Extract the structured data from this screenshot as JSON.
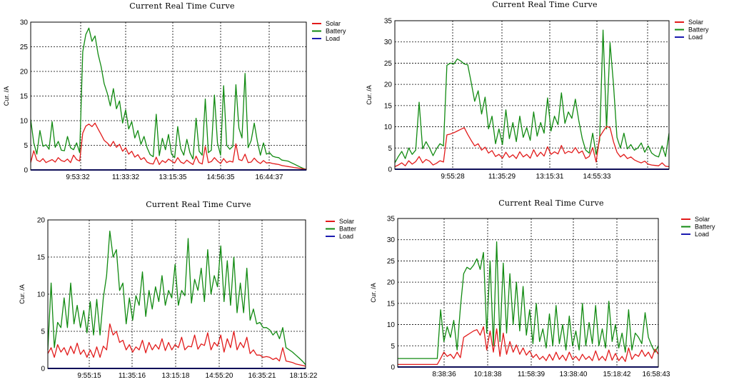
{
  "chart_data": [
    {
      "type": "line",
      "title": "Current Real Time Curve",
      "ylabel": "Cur. /A",
      "xlabel": "",
      "ylim": [
        0,
        30
      ],
      "yticks": [
        0,
        5,
        10,
        15,
        20,
        25,
        30
      ],
      "xticks": [
        "9:53:32",
        "11:33:32",
        "13:15:35",
        "14:56:35",
        "16:44:37"
      ],
      "legend": "top-right",
      "grid": true,
      "series": [
        {
          "name": "Solar",
          "color": "#e21b1b",
          "values": [
            1.5,
            3.9,
            2.0,
            1.7,
            2.3,
            1.5,
            1.8,
            2.1,
            1.6,
            2.5,
            1.9,
            1.7,
            2.2,
            1.5,
            3.0,
            2.1,
            1.8,
            7.5,
            8.9,
            9.3,
            8.8,
            9.5,
            8.3,
            7.2,
            6.0,
            5.5,
            4.8,
            5.8,
            4.6,
            5.2,
            3.8,
            4.5,
            3.2,
            3.8,
            2.6,
            3.1,
            2.1,
            2.5,
            1.6,
            1.3,
            1.2,
            2.6,
            1.1,
            1.9,
            1.5,
            2.2,
            1.8,
            1.4,
            2.5,
            1.6,
            1.3,
            2.0,
            1.5,
            1.1,
            2.8,
            1.5,
            1.2,
            4.8,
            1.5,
            1.7,
            2.5,
            1.8,
            1.3,
            2.3,
            1.5,
            1.8,
            1.6,
            5.3,
            2.1,
            1.9,
            3.2,
            1.5,
            1.6,
            2.4,
            1.7,
            1.3,
            1.9,
            1.4,
            1.5,
            1.3,
            1.2,
            1.1,
            0.9,
            0.8,
            0.7,
            0.6,
            0.5,
            0.4,
            0.3,
            0.2,
            0.1
          ]
        },
        {
          "name": "Battery",
          "color": "#118a11",
          "values": [
            10.2,
            5.5,
            3.2,
            8.0,
            4.8,
            5.1,
            4.2,
            9.8,
            4.6,
            5.8,
            4.0,
            3.9,
            6.8,
            4.5,
            4.1,
            5.5,
            3.5,
            24.0,
            27.5,
            28.8,
            26.1,
            27.2,
            23.5,
            21.0,
            17.5,
            15.6,
            13.0,
            16.5,
            12.4,
            14.0,
            9.5,
            12.2,
            8.3,
            9.8,
            6.5,
            8.0,
            5.2,
            6.8,
            4.5,
            3.1,
            2.7,
            11.3,
            2.9,
            6.4,
            4.1,
            7.2,
            3.2,
            2.5,
            8.8,
            4.3,
            3.0,
            6.2,
            3.5,
            2.2,
            10.5,
            3.8,
            3.0,
            14.4,
            3.5,
            4.0,
            15.2,
            5.5,
            3.0,
            17.1,
            5.0,
            4.2,
            4.8,
            17.3,
            8.5,
            6.5,
            19.6,
            4.5,
            6.0,
            9.5,
            5.8,
            3.0,
            5.5,
            3.2,
            3.5,
            2.8,
            2.6,
            2.5,
            2.0,
            1.9,
            1.8,
            1.5,
            1.2,
            0.9,
            0.6,
            0.3,
            0.1
          ]
        },
        {
          "name": "Load",
          "color": "#1b1bb0",
          "values": [
            0,
            0,
            0,
            0,
            0,
            0,
            0,
            0,
            0,
            0,
            0,
            0,
            0,
            0,
            0,
            0,
            0,
            0,
            0,
            0,
            0,
            0,
            0,
            0,
            0,
            0,
            0,
            0,
            0,
            0,
            0,
            0,
            0,
            0,
            0,
            0,
            0,
            0,
            0,
            0,
            0,
            0,
            0,
            0,
            0,
            0,
            0,
            0,
            0,
            0,
            0,
            0,
            0,
            0,
            0,
            0,
            0,
            0,
            0,
            0,
            0,
            0,
            0,
            0,
            0,
            0,
            0,
            0,
            0,
            0,
            0,
            0,
            0,
            0,
            0,
            0,
            0,
            0,
            0,
            0,
            0,
            0,
            0,
            0,
            0,
            0,
            0,
            0,
            0,
            0,
            0
          ]
        }
      ]
    },
    {
      "type": "line",
      "title": "Current Real Time Curve",
      "ylabel": "Cur. /A",
      "xlabel": "",
      "ylim": [
        0,
        35
      ],
      "yticks": [
        0,
        5,
        10,
        15,
        20,
        25,
        30,
        35
      ],
      "xticks": [
        "9:55:28",
        "11:35:29",
        "13:15:31",
        "14:55:33"
      ],
      "legend": "top-right",
      "grid": true,
      "series": [
        {
          "name": "Solar",
          "color": "#e21b1b",
          "values": [
            0.6,
            1.0,
            1.5,
            0.8,
            2.0,
            1.2,
            1.8,
            3.0,
            1.5,
            2.3,
            1.9,
            1.0,
            1.4,
            2.0,
            1.7,
            8.1,
            8.3,
            8.6,
            9.0,
            9.4,
            9.8,
            8.2,
            6.8,
            5.5,
            6.0,
            4.5,
            5.2,
            3.8,
            4.4,
            3.0,
            3.5,
            2.6,
            4.0,
            2.8,
            3.4,
            2.5,
            4.1,
            2.9,
            3.5,
            2.6,
            4.6,
            3.0,
            4.0,
            3.1,
            5.3,
            3.5,
            4.1,
            3.6,
            5.6,
            3.7,
            4.2,
            3.9,
            5.1,
            3.8,
            4.3,
            2.5,
            3.0,
            5.1,
            1.7,
            7.6,
            8.9,
            10.1,
            9.8,
            6.5,
            4.0,
            2.9,
            3.5,
            2.5,
            2.9,
            2.2,
            1.8,
            1.5,
            1.9,
            1.2,
            1.0,
            0.9,
            0.8,
            1.5,
            0.7,
            0.6
          ]
        },
        {
          "name": "Battery",
          "color": "#118a11",
          "values": [
            1.5,
            3.0,
            4.2,
            2.5,
            5.0,
            3.5,
            4.5,
            15.8,
            4.8,
            6.5,
            5.0,
            3.2,
            4.8,
            6.0,
            5.5,
            24.5,
            25.0,
            24.8,
            26.0,
            25.5,
            24.8,
            24.6,
            20.5,
            16.0,
            18.5,
            13.0,
            17.0,
            9.5,
            12.5,
            6.0,
            9.5,
            5.8,
            14.0,
            7.2,
            11.0,
            6.5,
            12.5,
            7.5,
            9.8,
            6.8,
            13.5,
            7.8,
            11.0,
            8.5,
            16.8,
            9.0,
            12.5,
            10.5,
            18.0,
            10.8,
            13.5,
            12.0,
            16.5,
            11.5,
            7.2,
            4.5,
            3.8,
            8.5,
            3.5,
            6.8,
            32.8,
            9.5,
            29.8,
            20.0,
            7.5,
            5.0,
            8.5,
            4.8,
            5.8,
            4.5,
            5.0,
            6.2,
            4.0,
            5.5,
            3.8,
            3.2,
            2.9,
            5.5,
            3.0,
            8.5
          ]
        },
        {
          "name": "Load",
          "color": "#1b1bb0",
          "values": [
            0,
            0,
            0,
            0,
            0,
            0,
            0,
            0,
            0,
            0,
            0,
            0,
            0,
            0,
            0,
            0,
            0,
            0,
            0,
            0,
            0,
            0,
            0,
            0,
            0,
            0,
            0,
            0,
            0,
            0,
            0,
            0,
            0,
            0,
            0,
            0,
            0,
            0,
            0,
            0,
            0,
            0,
            0,
            0,
            0,
            0,
            0,
            0,
            0,
            0,
            0,
            0,
            0,
            0,
            0,
            0,
            0,
            0,
            0,
            0,
            0,
            0,
            0,
            0,
            0,
            0,
            0,
            0,
            0,
            0,
            0,
            0,
            0,
            0,
            0,
            0,
            0,
            0,
            0,
            0
          ]
        }
      ]
    },
    {
      "type": "line",
      "title": "Current Real Time Curve",
      "ylabel": "Cur. /A",
      "xlabel": "",
      "ylim": [
        0,
        20
      ],
      "yticks": [
        0,
        5,
        10,
        15,
        20
      ],
      "xticks": [
        "9:55:15",
        "11:35:16",
        "13:15:18",
        "14:55:20",
        "16:35:21",
        "18:15:22"
      ],
      "legend": "top-right",
      "legend_labels": [
        "Solar",
        "Batter",
        "Load"
      ],
      "grid": true,
      "series": [
        {
          "name": "Solar",
          "color": "#e21b1b",
          "values": [
            2.0,
            2.8,
            1.5,
            3.2,
            2.2,
            2.8,
            1.8,
            3.0,
            2.0,
            3.4,
            1.9,
            2.5,
            1.5,
            2.5,
            1.5,
            2.9,
            1.5,
            3.0,
            2.5,
            6.0,
            4.5,
            5.0,
            3.5,
            3.8,
            2.5,
            3.2,
            2.2,
            2.9,
            2.5,
            3.8,
            2.1,
            3.5,
            2.5,
            3.2,
            2.6,
            4.0,
            2.4,
            3.5,
            2.5,
            3.2,
            2.8,
            4.2,
            2.5,
            3.0,
            2.9,
            4.5,
            2.6,
            3.3,
            3.1,
            4.8,
            2.5,
            3.5,
            3.0,
            4.5,
            2.2,
            4.0,
            2.8,
            5.0,
            2.5,
            3.5,
            2.8,
            4.2,
            2.0,
            2.5,
            1.8,
            1.8,
            1.5,
            1.6,
            1.5,
            1.2,
            1.4,
            1.0,
            2.8,
            1.0,
            0.9,
            0.8,
            0.6,
            0.5,
            0.4,
            0.3
          ]
        },
        {
          "name": "Battery",
          "color": "#118a11",
          "values": [
            2.5,
            11.5,
            2.8,
            6.2,
            5.5,
            9.5,
            5.5,
            11.5,
            6.0,
            8.5,
            5.5,
            7.8,
            4.8,
            9.0,
            4.5,
            9.3,
            4.5,
            9.5,
            12.5,
            18.5,
            15.0,
            16.0,
            10.5,
            11.5,
            6.0,
            9.5,
            6.5,
            9.8,
            8.5,
            13.0,
            7.0,
            10.5,
            8.0,
            11.0,
            9.0,
            12.5,
            8.5,
            10.5,
            9.5,
            14.0,
            8.5,
            10.5,
            9.8,
            17.5,
            8.8,
            12.0,
            10.5,
            13.5,
            9.0,
            16.0,
            10.0,
            12.5,
            11.0,
            16.5,
            9.0,
            14.5,
            8.5,
            15.0,
            7.5,
            11.5,
            7.5,
            13.5,
            6.5,
            8.0,
            6.0,
            6.2,
            5.5,
            5.5,
            5.2,
            4.5,
            5.0,
            4.0,
            5.5,
            2.8,
            2.5,
            2.2,
            1.8,
            1.4,
            1.0,
            0.5
          ]
        },
        {
          "name": "Load",
          "color": "#1b1bb0",
          "values": [
            0,
            0,
            0,
            0,
            0,
            0,
            0,
            0,
            0,
            0,
            0,
            0,
            0,
            0,
            0,
            0,
            0,
            0,
            0,
            0,
            0,
            0,
            0,
            0,
            0,
            0,
            0,
            0,
            0,
            0,
            0,
            0,
            0,
            0,
            0,
            0,
            0,
            0,
            0,
            0,
            0,
            0,
            0,
            0,
            0,
            0,
            0,
            0,
            0,
            0,
            0,
            0,
            0,
            0,
            0,
            0,
            0,
            0,
            0,
            0,
            0,
            0,
            0,
            0,
            0,
            0,
            0,
            0,
            0,
            0,
            0,
            0,
            0,
            0,
            0,
            0,
            0,
            0,
            0,
            0
          ]
        }
      ]
    },
    {
      "type": "line",
      "title": "Current Real Time Curve",
      "ylabel": "Cur. /A",
      "xlabel": "",
      "ylim": [
        0,
        35
      ],
      "yticks": [
        0,
        5,
        10,
        15,
        20,
        25,
        30,
        35
      ],
      "xticks": [
        "8:38:36",
        "10:18:38",
        "11:58:39",
        "13:38:40",
        "15:18:42",
        "16:58:43"
      ],
      "legend": "top-right",
      "grid": true,
      "series": [
        {
          "name": "Solar",
          "color": "#e21b1b",
          "values": [
            0.6,
            0.6,
            0.6,
            0.6,
            0.6,
            0.6,
            0.6,
            0.6,
            0.6,
            0.6,
            0.6,
            0.6,
            0.6,
            2.0,
            3.5,
            2.5,
            3.0,
            2.0,
            3.5,
            2.2,
            7.0,
            7.5,
            8.0,
            8.5,
            8.8,
            7.5,
            9.5,
            4.0,
            8.5,
            3.5,
            9.0,
            2.5,
            8.0,
            3.0,
            6.0,
            3.5,
            5.2,
            3.0,
            4.5,
            2.8,
            3.8,
            2.2,
            3.0,
            1.8,
            2.5,
            1.5,
            3.0,
            1.6,
            3.5,
            1.8,
            2.8,
            1.5,
            3.5,
            1.8,
            2.5,
            1.5,
            3.0,
            1.8,
            2.5,
            1.5,
            3.8,
            1.6,
            2.5,
            1.5,
            4.0,
            1.6,
            3.2,
            1.5,
            2.5,
            1.3,
            4.5,
            1.8,
            3.0,
            2.5,
            4.0,
            2.5,
            3.5,
            2.0,
            4.2,
            3.0
          ]
        },
        {
          "name": "Battery",
          "color": "#118a11",
          "values": [
            2.0,
            2.0,
            2.0,
            2.0,
            2.0,
            2.0,
            2.0,
            2.0,
            2.0,
            2.0,
            2.0,
            2.0,
            2.0,
            13.5,
            6.0,
            9.5,
            7.0,
            11.0,
            4.0,
            14.0,
            22.0,
            23.5,
            23.0,
            24.0,
            25.5,
            23.0,
            27.0,
            8.0,
            25.0,
            5.0,
            29.5,
            6.0,
            24.5,
            8.0,
            22.0,
            10.0,
            20.0,
            8.5,
            19.0,
            7.5,
            13.5,
            5.5,
            15.0,
            6.0,
            9.0,
            4.5,
            12.5,
            5.0,
            14.5,
            5.5,
            10.0,
            4.0,
            12.0,
            5.0,
            8.5,
            4.0,
            15.0,
            5.0,
            10.5,
            5.5,
            14.5,
            5.0,
            9.0,
            4.5,
            15.5,
            6.0,
            10.0,
            4.5,
            8.0,
            3.5,
            13.5,
            4.0,
            8.0,
            7.0,
            5.5,
            12.8,
            7.0,
            5.0,
            3.5,
            5.0
          ]
        },
        {
          "name": "Load",
          "color": "#1b1bb0",
          "values": [
            0,
            0,
            0,
            0,
            0,
            0,
            0,
            0,
            0,
            0,
            0,
            0,
            0,
            0,
            0,
            0,
            0,
            0,
            0,
            0,
            0,
            0,
            0,
            0,
            0,
            0,
            0,
            0,
            0,
            0,
            0,
            0,
            0,
            0,
            0,
            0,
            0,
            0,
            0,
            0,
            0,
            0,
            0,
            0,
            0,
            0,
            0,
            0,
            0,
            0,
            0,
            0,
            0,
            0,
            0,
            0,
            0,
            0,
            0,
            0,
            0,
            0,
            0,
            0,
            0,
            0,
            0,
            0,
            0,
            0,
            0,
            0,
            0,
            0,
            0,
            0,
            0,
            0,
            0,
            0
          ]
        }
      ]
    }
  ]
}
